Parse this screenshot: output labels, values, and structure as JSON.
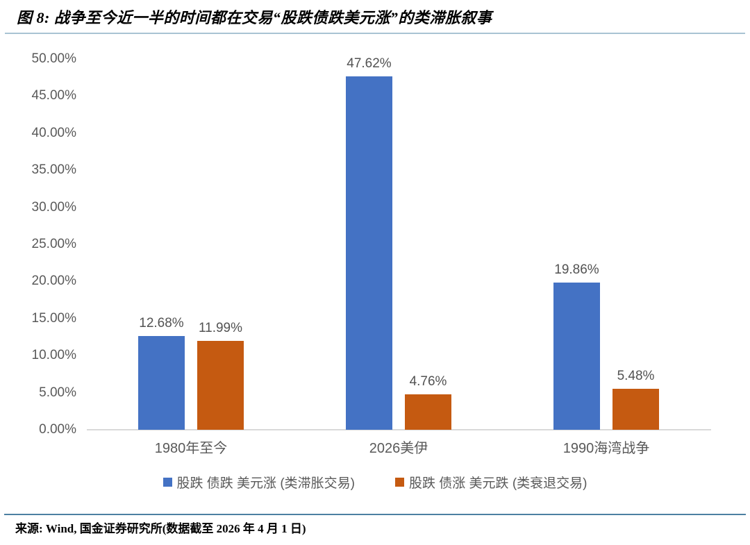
{
  "figure": {
    "title": "图 8: 战争至今近一半的时间都在交易“股跌债跌美元涨”的类滞胀叙事",
    "source": "来源: Wind, 国金证券研究所(数据截至 2026 年 4 月 1 日)"
  },
  "chart_data": {
    "type": "bar",
    "categories": [
      "1980年至今",
      "2026美伊",
      "1990海湾战争"
    ],
    "series": [
      {
        "name": "股跌 债跌 美元涨 (类滞胀交易)",
        "color": "#4472C4",
        "values": [
          12.68,
          47.62,
          19.86
        ],
        "data_labels": [
          "12.68%",
          "47.62%",
          "19.86%"
        ]
      },
      {
        "name": "股跌 债涨 美元跌 (类衰退交易)",
        "color": "#C55A11",
        "values": [
          11.99,
          4.76,
          5.48
        ],
        "data_labels": [
          "11.99%",
          "4.76%",
          "5.48%"
        ]
      }
    ],
    "title": "",
    "xlabel": "",
    "ylabel": "",
    "ylim": [
      0,
      50
    ],
    "ytick_step": 5,
    "ytick_labels": [
      "0.00%",
      "5.00%",
      "10.00%",
      "15.00%",
      "20.00%",
      "25.00%",
      "30.00%",
      "35.00%",
      "40.00%",
      "45.00%",
      "50.00%"
    ],
    "grid": false,
    "legend_position": "bottom"
  },
  "colors": {
    "series1": "#4472C4",
    "series2": "#C55A11",
    "axis_text": "#595959",
    "baseline": "#d9d9d9",
    "title_rule": "#a9c3d3",
    "footer_rule": "#4d80a2"
  }
}
